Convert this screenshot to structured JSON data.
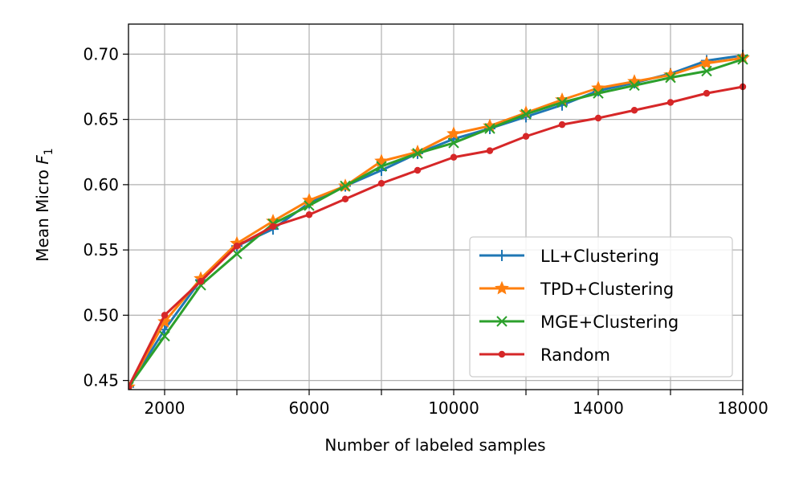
{
  "chart_data": {
    "type": "line",
    "title": "",
    "xlabel": "Number of labeled samples",
    "ylabel_main": "Mean Micro ",
    "ylabel_var": "F",
    "ylabel_sub": "1",
    "xlim": [
      1000,
      18000
    ],
    "ylim": [
      0.443,
      0.723
    ],
    "xticks": [
      2000,
      4000,
      6000,
      8000,
      10000,
      12000,
      14000,
      16000,
      18000
    ],
    "xtick_labels": [
      "2000",
      "",
      "6000",
      "",
      "10000",
      "",
      "14000",
      "",
      "18000"
    ],
    "yticks": [
      0.45,
      0.5,
      0.55,
      0.6,
      0.65,
      0.7
    ],
    "ytick_labels": [
      "0.45",
      "0.50",
      "0.55",
      "0.60",
      "0.65",
      "0.70"
    ],
    "grid": true,
    "legend_position": "lower-right",
    "x": [
      1000,
      2000,
      3000,
      4000,
      5000,
      6000,
      7000,
      8000,
      9000,
      10000,
      11000,
      12000,
      13000,
      14000,
      15000,
      16000,
      17000,
      18000
    ],
    "series": [
      {
        "name": "LL+Clustering",
        "color": "#1f77b4",
        "marker": "plus",
        "values": [
          0.445,
          0.489,
          0.527,
          0.553,
          0.566,
          0.586,
          0.599,
          0.611,
          0.624,
          0.635,
          0.643,
          0.652,
          0.661,
          0.672,
          0.678,
          0.685,
          0.695,
          0.699
        ]
      },
      {
        "name": "TPD+Clustering",
        "color": "#ff7f0e",
        "marker": "star",
        "values": [
          0.445,
          0.495,
          0.528,
          0.555,
          0.572,
          0.588,
          0.599,
          0.618,
          0.625,
          0.639,
          0.645,
          0.655,
          0.665,
          0.674,
          0.679,
          0.684,
          0.693,
          0.697
        ]
      },
      {
        "name": "MGE+Clustering",
        "color": "#2ca02c",
        "marker": "x",
        "values": [
          0.445,
          0.484,
          0.523,
          0.547,
          0.57,
          0.584,
          0.599,
          0.614,
          0.624,
          0.632,
          0.643,
          0.654,
          0.663,
          0.67,
          0.676,
          0.682,
          0.687,
          0.696
        ]
      },
      {
        "name": "Random",
        "color": "#d62728",
        "marker": "dot",
        "values": [
          0.445,
          0.5,
          0.526,
          0.553,
          0.568,
          0.577,
          0.589,
          0.601,
          0.611,
          0.621,
          0.626,
          0.637,
          0.646,
          0.651,
          0.657,
          0.663,
          0.67,
          0.675
        ]
      }
    ]
  }
}
